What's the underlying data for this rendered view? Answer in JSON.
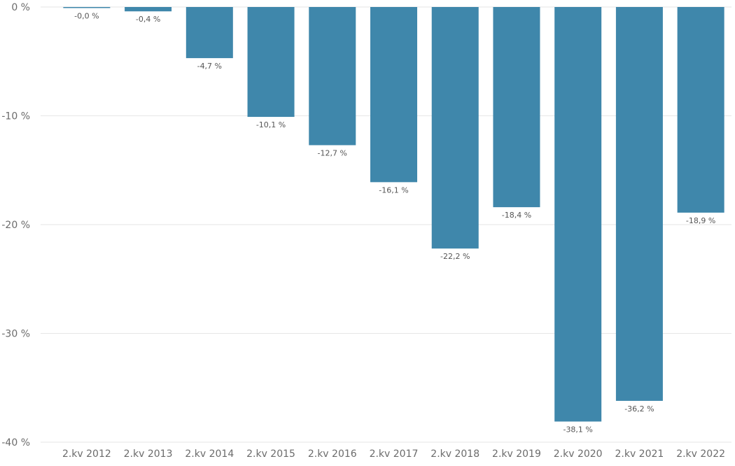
{
  "chart_data": {
    "type": "bar",
    "title": "",
    "xlabel": "",
    "ylabel": "",
    "categories": [
      "2.kv 2012",
      "2.kv 2013",
      "2.kv 2014",
      "2.kv 2015",
      "2.kv 2016",
      "2.kv 2017",
      "2.kv 2018",
      "2.kv 2019",
      "2.kv 2020",
      "2.kv 2021",
      "2.kv 2022"
    ],
    "values": [
      -0.0,
      -0.4,
      -4.7,
      -10.1,
      -12.7,
      -16.1,
      -22.2,
      -18.4,
      -38.1,
      -36.2,
      -18.9
    ],
    "data_labels": [
      "-0,0 %",
      "-0,4 %",
      "-4,7 %",
      "-10,1 %",
      "-12,7 %",
      "-16,1 %",
      "-22,2 %",
      "-18,4 %",
      "-38,1 %",
      "-36,2 %",
      "-18,9 %"
    ],
    "ylim": [
      -40,
      0
    ],
    "yticks": [
      0,
      -10,
      -20,
      -30,
      -40
    ],
    "ytick_labels": [
      "0 %",
      "-10 %",
      "-20 %",
      "-30 %",
      "-40 %"
    ],
    "grid": true,
    "legend": "none",
    "colors": {
      "bar": "#3f87ab",
      "grid": "#e6e6e6",
      "text": "#6b6b6b"
    }
  }
}
